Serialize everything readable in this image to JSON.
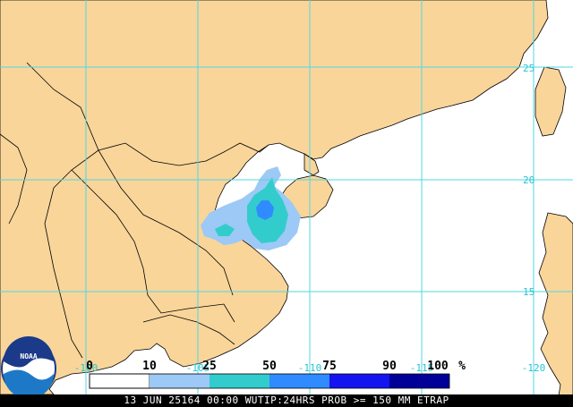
{
  "colors": {
    "ocean": "#ffffff",
    "land": "#f9d59a",
    "border": "#000000",
    "gridline": "#4fd8e4",
    "grid_label": "#27c4d4",
    "prob_10": "#9cc9f5",
    "prob_25": "#33cccc",
    "prob_50": "#2f8bff",
    "prob_75": "#1414f0",
    "prob_90": "#000099"
  },
  "latitude_labels": [
    "25",
    "20",
    "15"
  ],
  "longitude_labels": [
    "-100",
    "-105",
    "-110",
    "-115",
    "-120"
  ],
  "legend": {
    "ticks": [
      "0",
      "10",
      "25",
      "50",
      "75",
      "90",
      "100"
    ],
    "unit": "%"
  },
  "logo": {
    "text": "NOAA",
    "icon": "noaa-logo-icon"
  },
  "status_bar": {
    "text": "13 JUN 25164 00:00 WUTIP:24HRS PROB >= 150 MM ETRAP"
  }
}
